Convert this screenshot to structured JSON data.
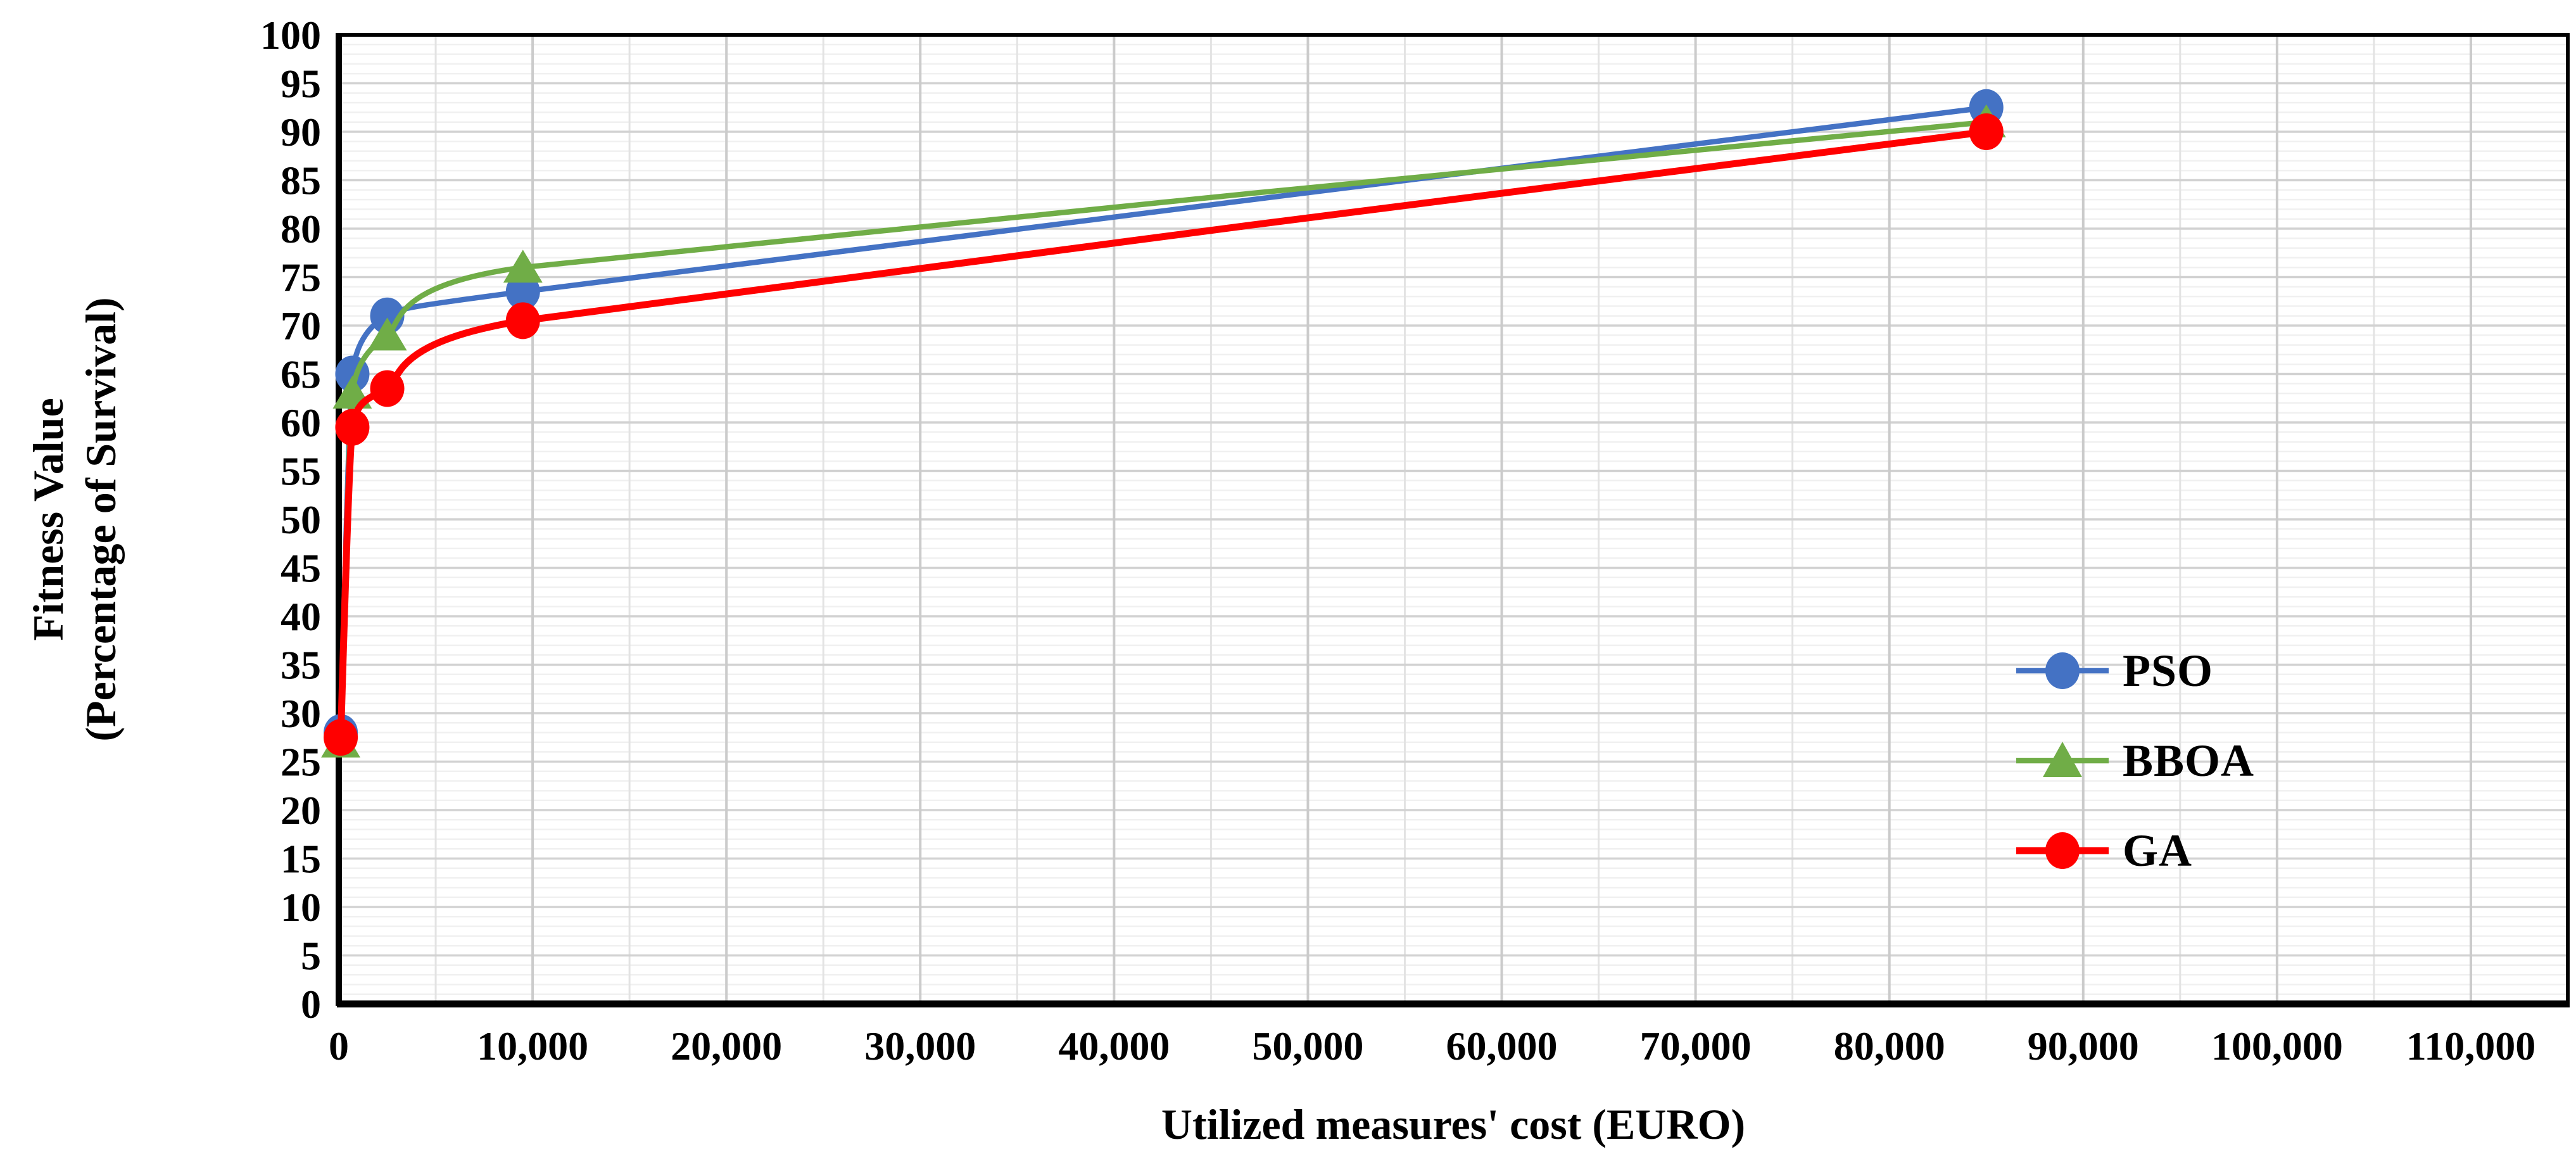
{
  "chart_data": {
    "type": "line",
    "title": "",
    "xlabel": "Utilized measures' cost (EURO)",
    "ylabel": "Fitness Value (Percentage of Survival)",
    "ylabel_lines": [
      "Fitness Value",
      "(Percentage of Survival)"
    ],
    "xlim": [
      0,
      115000
    ],
    "ylim": [
      0,
      100
    ],
    "grid": {
      "y_major_step": 5,
      "y_minor_step": 1,
      "x_major_step": 10000,
      "x_minor_step": 5000
    },
    "legend_position": "inside-right",
    "x_ticks": {
      "values": [
        0,
        10000,
        20000,
        30000,
        40000,
        50000,
        60000,
        70000,
        80000,
        90000,
        100000,
        110000
      ],
      "labels": [
        "0",
        "10,000",
        "20,000",
        "30,000",
        "40,000",
        "50,000",
        "60,000",
        "70,000",
        "80,000",
        "90,000",
        "100,000",
        "110,000"
      ]
    },
    "y_ticks": {
      "values": [
        0,
        5,
        10,
        15,
        20,
        25,
        30,
        35,
        40,
        45,
        50,
        55,
        60,
        65,
        70,
        75,
        80,
        85,
        90,
        95,
        100
      ],
      "labels": [
        "0",
        "5",
        "10",
        "15",
        "20",
        "25",
        "30",
        "35",
        "40",
        "45",
        "50",
        "55",
        "60",
        "65",
        "70",
        "75",
        "80",
        "85",
        "90",
        "95",
        "100"
      ]
    },
    "x": [
      100,
      700,
      2500,
      9500,
      85000
    ],
    "series": [
      {
        "name": "PSO",
        "color": "#4472C4",
        "marker": "circle",
        "values": [
          28,
          65,
          71,
          73.5,
          92.5
        ]
      },
      {
        "name": "BBOA",
        "color": "#70AD47",
        "marker": "triangle",
        "values": [
          27,
          63,
          69,
          76,
          91
        ]
      },
      {
        "name": "GA",
        "color": "#FF0000",
        "marker": "circle",
        "values": [
          27.5,
          59.5,
          63.5,
          70.5,
          90
        ]
      }
    ]
  }
}
